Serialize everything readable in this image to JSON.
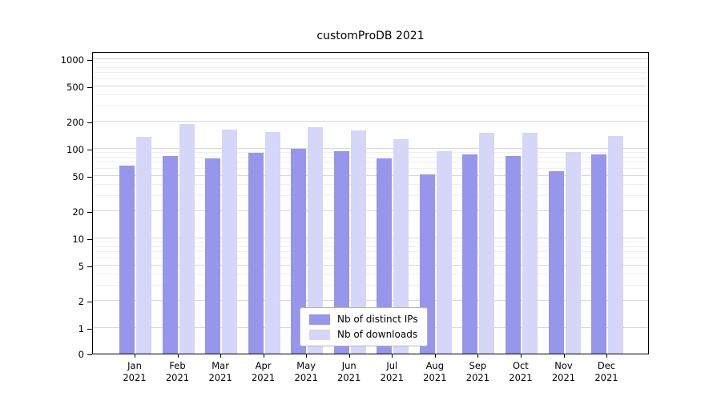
{
  "chart_data": {
    "type": "bar",
    "title": "customProDB 2021",
    "categories": [
      "Jan",
      "Feb",
      "Mar",
      "Apr",
      "May",
      "Jun",
      "Jul",
      "Aug",
      "Sep",
      "Oct",
      "Nov",
      "Dec"
    ],
    "x_year": "2021",
    "series": [
      {
        "name": "Nb of distinct IPs",
        "color": "#9696ec",
        "values": [
          65,
          83,
          78,
          90,
          100,
          95,
          78,
          52,
          87,
          83,
          56,
          86
        ]
      },
      {
        "name": "Nb of downloads",
        "color": "#d6d6f8",
        "values": [
          135,
          190,
          165,
          155,
          175,
          160,
          128,
          95,
          150,
          150,
          93,
          140
        ]
      }
    ],
    "yscale": "log",
    "yticks": [
      0,
      1,
      2,
      5,
      10,
      20,
      50,
      100,
      200,
      500,
      1000
    ],
    "ylim": [
      0,
      1000
    ],
    "grid": true,
    "legend_position": "bottom-center",
    "colors": {
      "major_grid": "#d9d9d9",
      "minor_grid": "#efefef",
      "axis": "#000000",
      "background": "#ffffff"
    }
  }
}
